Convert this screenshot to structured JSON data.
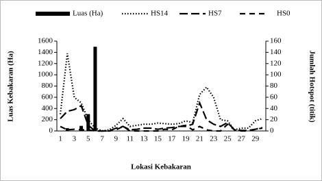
{
  "chart_data": {
    "type": "bar-line",
    "xlabel": "Lokasi Kebakaran",
    "ylabel": "Luas Kebakaran (Ha)",
    "y2label": "Jumlah Hotspot (titik)",
    "categories": [
      1,
      null,
      3,
      null,
      5,
      null,
      7,
      null,
      9,
      null,
      11,
      null,
      13,
      null,
      15,
      null,
      17,
      null,
      19,
      null,
      21,
      null,
      23,
      null,
      25,
      null,
      27,
      null,
      29,
      null
    ],
    "ylim": [
      0,
      1600
    ],
    "yticks": [
      0,
      200,
      400,
      600,
      800,
      1000,
      1200,
      1400,
      1600
    ],
    "y2lim": [
      0,
      160
    ],
    "y2ticks": [
      0,
      20,
      40,
      60,
      80,
      100,
      120,
      140,
      160
    ],
    "series": [
      {
        "name": "Luas (Ha)",
        "kind": "bar",
        "color": "#000000",
        "values": [
          0,
          50,
          0,
          90,
          300,
          1500,
          0,
          0,
          0,
          0,
          0,
          0,
          0,
          0,
          0,
          0,
          0,
          0,
          0,
          0,
          0,
          0,
          0,
          0,
          0,
          0,
          0,
          0,
          0,
          0
        ]
      },
      {
        "name": "HS14",
        "kind": "line",
        "dash": "dotted",
        "axis": "y2",
        "color": "#000000",
        "values": [
          30,
          138,
          60,
          50,
          20,
          5,
          0,
          2,
          10,
          22,
          8,
          10,
          12,
          12,
          14,
          13,
          12,
          13,
          18,
          15,
          65,
          78,
          60,
          20,
          18,
          2,
          5,
          5,
          18,
          22
        ]
      },
      {
        "name": "HS7",
        "kind": "line",
        "dash": "long",
        "axis": "y2",
        "color": "#000000",
        "values": [
          22,
          35,
          38,
          45,
          10,
          0,
          0,
          0,
          5,
          8,
          2,
          3,
          5,
          5,
          3,
          5,
          6,
          8,
          8,
          12,
          50,
          20,
          12,
          8,
          15,
          2,
          1,
          1,
          3,
          6
        ]
      },
      {
        "name": "HS0",
        "kind": "line",
        "dash": "medium",
        "axis": "y2",
        "color": "#000000",
        "values": [
          8,
          2,
          3,
          2,
          2,
          0,
          0,
          0,
          2,
          8,
          0,
          0,
          0,
          0,
          0,
          3,
          2,
          8,
          10,
          2,
          8,
          2,
          0,
          0,
          12,
          2,
          0,
          0,
          3,
          5
        ]
      }
    ]
  }
}
